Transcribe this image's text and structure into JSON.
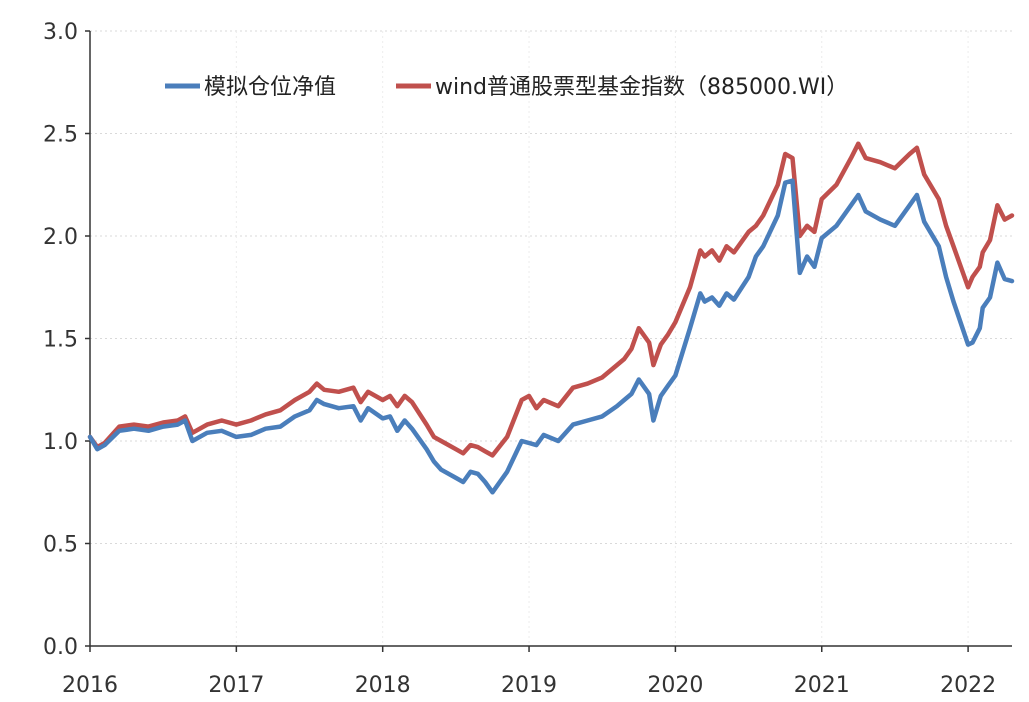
{
  "chart_data": {
    "type": "line",
    "title": "",
    "xlabel": "",
    "ylabel": "",
    "xlim": [
      2016.0,
      2022.3
    ],
    "ylim": [
      0.0,
      3.0
    ],
    "x_ticks": [
      "2016",
      "2017",
      "2018",
      "2019",
      "2020",
      "2021",
      "2022"
    ],
    "y_ticks": [
      "0.0",
      "0.5",
      "1.0",
      "1.5",
      "2.0",
      "2.5",
      "3.0"
    ],
    "grid": "horizontal dotted",
    "legend_position": "top",
    "series": [
      {
        "name": "模拟仓位净值",
        "color": "#4a7ebb",
        "x": [
          2016.0,
          2016.05,
          2016.1,
          2016.2,
          2016.3,
          2016.4,
          2016.5,
          2016.6,
          2016.65,
          2016.7,
          2016.8,
          2016.9,
          2017.0,
          2017.1,
          2017.2,
          2017.3,
          2017.4,
          2017.5,
          2017.55,
          2017.6,
          2017.7,
          2017.8,
          2017.85,
          2017.9,
          2018.0,
          2018.05,
          2018.1,
          2018.15,
          2018.2,
          2018.3,
          2018.35,
          2018.4,
          2018.5,
          2018.55,
          2018.6,
          2018.65,
          2018.7,
          2018.75,
          2018.85,
          2018.95,
          2019.0,
          2019.05,
          2019.1,
          2019.2,
          2019.3,
          2019.4,
          2019.5,
          2019.6,
          2019.65,
          2019.7,
          2019.75,
          2019.82,
          2019.85,
          2019.9,
          2019.95,
          2020.0,
          2020.1,
          2020.17,
          2020.2,
          2020.25,
          2020.3,
          2020.35,
          2020.4,
          2020.5,
          2020.55,
          2020.6,
          2020.7,
          2020.75,
          2020.8,
          2020.85,
          2020.9,
          2020.95,
          2021.0,
          2021.1,
          2021.2,
          2021.25,
          2021.3,
          2021.4,
          2021.5,
          2021.6,
          2021.65,
          2021.7,
          2021.8,
          2021.85,
          2021.9,
          2022.0,
          2022.03,
          2022.08,
          2022.1,
          2022.15,
          2022.2,
          2022.25,
          2022.3
        ],
        "values": [
          1.02,
          0.96,
          0.98,
          1.05,
          1.06,
          1.05,
          1.07,
          1.08,
          1.1,
          1.0,
          1.04,
          1.05,
          1.02,
          1.03,
          1.06,
          1.07,
          1.12,
          1.15,
          1.2,
          1.18,
          1.16,
          1.17,
          1.1,
          1.16,
          1.11,
          1.12,
          1.05,
          1.1,
          1.06,
          0.96,
          0.9,
          0.86,
          0.82,
          0.8,
          0.85,
          0.84,
          0.8,
          0.75,
          0.85,
          1.0,
          0.99,
          0.98,
          1.03,
          1.0,
          1.08,
          1.1,
          1.12,
          1.17,
          1.2,
          1.23,
          1.3,
          1.23,
          1.1,
          1.22,
          1.27,
          1.32,
          1.55,
          1.72,
          1.68,
          1.7,
          1.66,
          1.72,
          1.69,
          1.8,
          1.9,
          1.95,
          2.1,
          2.26,
          2.27,
          1.82,
          1.9,
          1.85,
          1.99,
          2.05,
          2.15,
          2.2,
          2.12,
          2.08,
          2.05,
          2.15,
          2.2,
          2.07,
          1.95,
          1.8,
          1.68,
          1.47,
          1.48,
          1.55,
          1.65,
          1.7,
          1.87,
          1.79,
          1.78
        ]
      },
      {
        "name": "wind普通股票型基金指数（885000.WI）",
        "color": "#c0504d",
        "x": [
          2016.0,
          2016.05,
          2016.1,
          2016.2,
          2016.3,
          2016.4,
          2016.5,
          2016.6,
          2016.65,
          2016.7,
          2016.8,
          2016.9,
          2017.0,
          2017.1,
          2017.2,
          2017.3,
          2017.4,
          2017.5,
          2017.55,
          2017.6,
          2017.7,
          2017.8,
          2017.85,
          2017.9,
          2018.0,
          2018.05,
          2018.1,
          2018.15,
          2018.2,
          2018.3,
          2018.35,
          2018.4,
          2018.5,
          2018.55,
          2018.6,
          2018.65,
          2018.7,
          2018.75,
          2018.85,
          2018.95,
          2019.0,
          2019.05,
          2019.1,
          2019.2,
          2019.3,
          2019.4,
          2019.5,
          2019.6,
          2019.65,
          2019.7,
          2019.75,
          2019.82,
          2019.85,
          2019.9,
          2019.95,
          2020.0,
          2020.1,
          2020.17,
          2020.2,
          2020.25,
          2020.3,
          2020.35,
          2020.4,
          2020.5,
          2020.55,
          2020.6,
          2020.7,
          2020.75,
          2020.8,
          2020.85,
          2020.9,
          2020.95,
          2021.0,
          2021.1,
          2021.2,
          2021.25,
          2021.3,
          2021.4,
          2021.5,
          2021.6,
          2021.65,
          2021.7,
          2021.8,
          2021.85,
          2021.9,
          2022.0,
          2022.03,
          2022.08,
          2022.1,
          2022.15,
          2022.2,
          2022.25,
          2022.3
        ],
        "values": [
          1.02,
          0.97,
          0.99,
          1.07,
          1.08,
          1.07,
          1.09,
          1.1,
          1.12,
          1.04,
          1.08,
          1.1,
          1.08,
          1.1,
          1.13,
          1.15,
          1.2,
          1.24,
          1.28,
          1.25,
          1.24,
          1.26,
          1.19,
          1.24,
          1.2,
          1.22,
          1.17,
          1.22,
          1.19,
          1.08,
          1.02,
          1.0,
          0.96,
          0.94,
          0.98,
          0.97,
          0.95,
          0.93,
          1.02,
          1.2,
          1.22,
          1.16,
          1.2,
          1.17,
          1.26,
          1.28,
          1.31,
          1.37,
          1.4,
          1.45,
          1.55,
          1.48,
          1.37,
          1.47,
          1.52,
          1.58,
          1.75,
          1.93,
          1.9,
          1.93,
          1.88,
          1.95,
          1.92,
          2.02,
          2.05,
          2.1,
          2.25,
          2.4,
          2.38,
          2.0,
          2.05,
          2.02,
          2.18,
          2.25,
          2.38,
          2.45,
          2.38,
          2.36,
          2.33,
          2.4,
          2.43,
          2.3,
          2.18,
          2.05,
          1.95,
          1.75,
          1.8,
          1.85,
          1.92,
          1.98,
          2.15,
          2.08,
          2.1
        ]
      }
    ]
  }
}
